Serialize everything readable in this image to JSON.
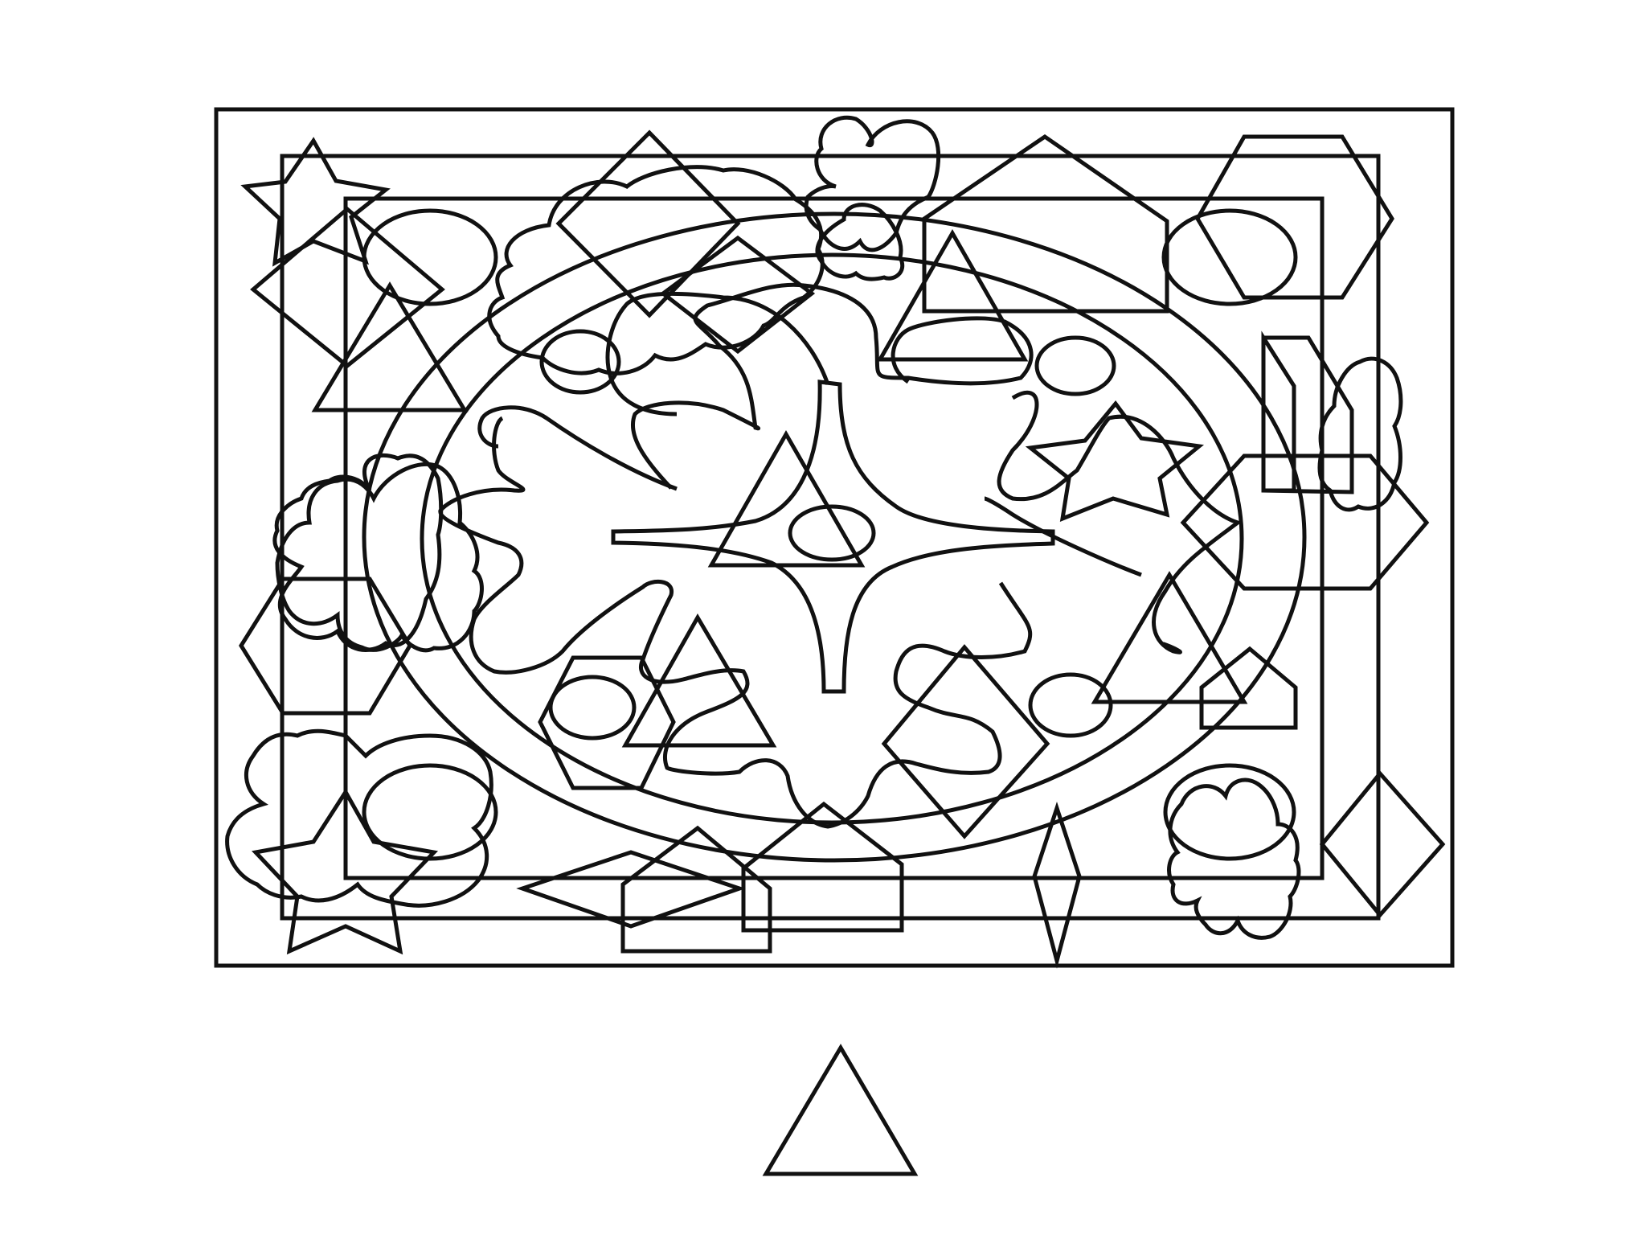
{
  "puzzle": {
    "type": "find-the-shape",
    "target_shape_icon": "triangle-outline-icon",
    "line_color": "#111111",
    "background_color": "#ffffff"
  }
}
